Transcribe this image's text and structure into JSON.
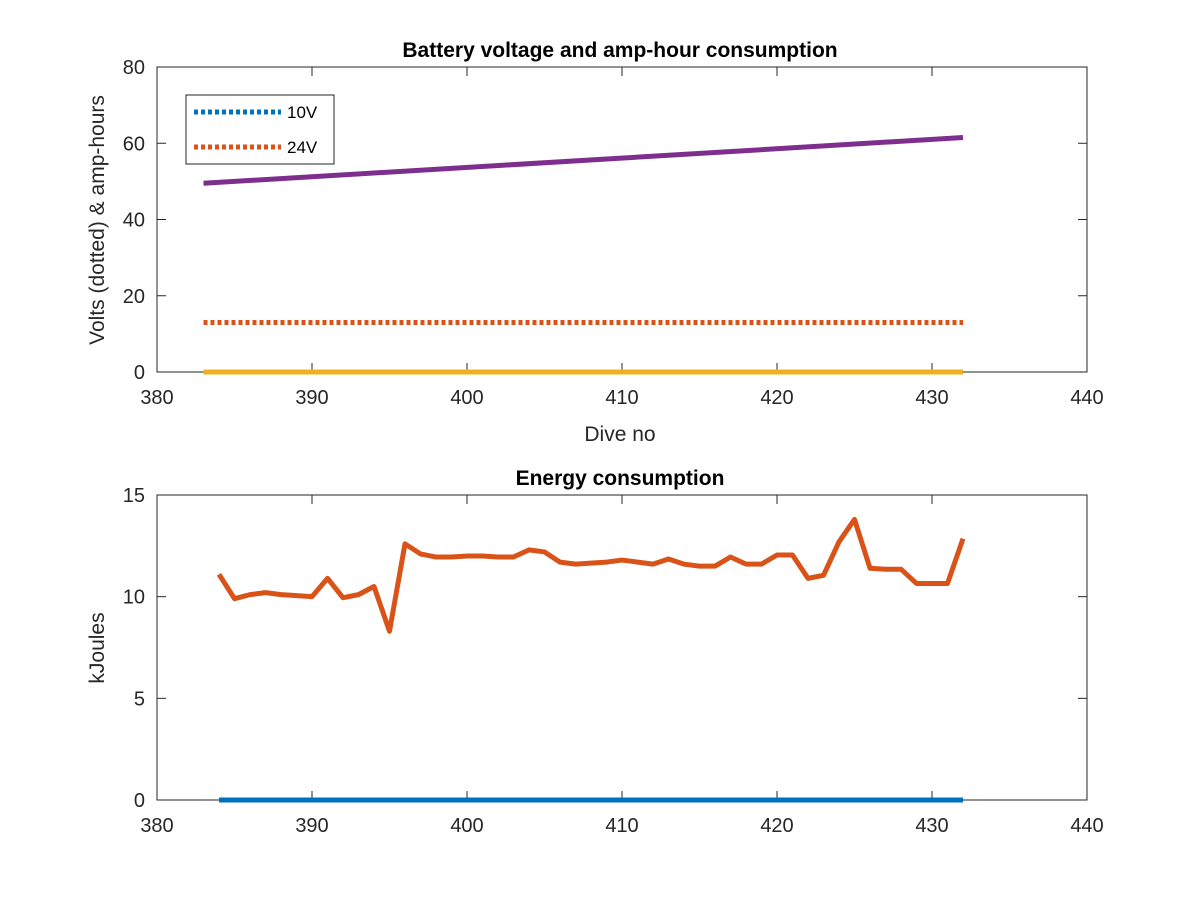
{
  "chart_data": [
    {
      "type": "line",
      "title": "Battery voltage and amp-hour consumption",
      "xlabel": "Dive no",
      "ylabel": "Volts (dotted) & amp-hours",
      "xlim": [
        380,
        440
      ],
      "ylim": [
        0,
        80
      ],
      "xticks": [
        380,
        390,
        400,
        410,
        420,
        430,
        440
      ],
      "yticks": [
        0,
        20,
        40,
        60,
        80
      ],
      "grid": false,
      "legend_position": "top-left",
      "series": [
        {
          "name": "10V",
          "color": "#0072bd",
          "style": "dotted",
          "x": [
            383,
            432
          ],
          "y": [
            13,
            13
          ]
        },
        {
          "name": "24V",
          "color": "#d95319",
          "style": "dotted",
          "x": [
            383,
            432
          ],
          "y": [
            13,
            13
          ]
        },
        {
          "color": "#7e2f8e",
          "style": "solid",
          "x": [
            383,
            432
          ],
          "y": [
            49.5,
            61.5
          ]
        },
        {
          "color": "#edb120",
          "style": "solid",
          "x": [
            383,
            432
          ],
          "y": [
            0,
            0
          ]
        }
      ]
    },
    {
      "type": "line",
      "title": "Energy consumption",
      "xlabel": "",
      "ylabel": "kJoules",
      "xlim": [
        380,
        440
      ],
      "ylim": [
        0,
        15
      ],
      "xticks": [
        380,
        390,
        400,
        410,
        420,
        430,
        440
      ],
      "yticks": [
        0,
        5,
        10,
        15
      ],
      "grid": false,
      "series": [
        {
          "color": "#d95319",
          "style": "solid",
          "x": [
            384,
            385,
            386,
            387,
            388,
            389,
            390,
            391,
            392,
            393,
            394,
            395,
            396,
            397,
            398,
            399,
            400,
            401,
            402,
            403,
            404,
            405,
            406,
            407,
            408,
            409,
            410,
            411,
            412,
            413,
            414,
            415,
            416,
            417,
            418,
            419,
            420,
            421,
            422,
            423,
            424,
            425,
            426,
            427,
            428,
            429,
            430,
            431,
            432
          ],
          "y": [
            11.1,
            9.9,
            10.1,
            10.2,
            10.1,
            10.05,
            10.0,
            10.9,
            9.95,
            10.1,
            10.5,
            8.3,
            12.6,
            12.1,
            11.95,
            11.95,
            12.0,
            12.0,
            11.95,
            11.95,
            12.3,
            12.2,
            11.7,
            11.6,
            11.65,
            11.7,
            11.8,
            11.7,
            11.6,
            11.85,
            11.6,
            11.5,
            11.5,
            11.95,
            11.6,
            11.6,
            12.05,
            12.05,
            10.9,
            11.05,
            12.7,
            13.8,
            11.4,
            11.35,
            11.35,
            10.65,
            10.65,
            10.65,
            12.85
          ]
        },
        {
          "color": "#0072bd",
          "style": "solid",
          "x": [
            384,
            432
          ],
          "y": [
            0,
            0
          ]
        }
      ]
    }
  ]
}
